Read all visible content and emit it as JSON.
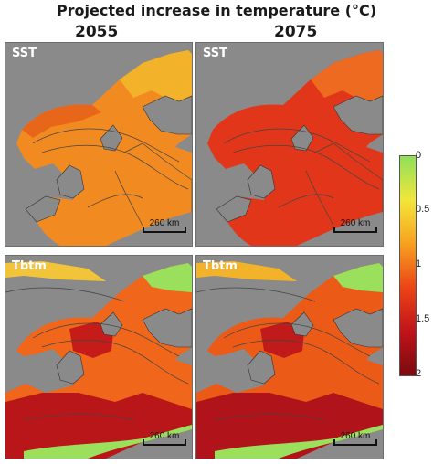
{
  "title": "Projected increase in temperature (°C)",
  "columns": [
    "2055",
    "2075"
  ],
  "panels": [
    {
      "row_label": "SST",
      "year": "2055",
      "scale": "260 km"
    },
    {
      "row_label": "SST",
      "year": "2075",
      "scale": "260 km"
    },
    {
      "row_label": "Tbtm",
      "year": "2055",
      "scale": "260 km"
    },
    {
      "row_label": "Tbtm",
      "year": "2075",
      "scale": "260 km"
    }
  ],
  "colorbar": {
    "ticks": [
      "0",
      "0.5",
      "1",
      "1.5",
      "2"
    ],
    "colors": [
      "#8ee05a",
      "#f2e63a",
      "#f7a11f",
      "#ec4416",
      "#c0141a",
      "#7a0a10"
    ]
  },
  "colors": {
    "land": "#8a8a8a",
    "sst_2055": "#f28a22",
    "sst_2075": "#e2361a",
    "tbtm_ocean": "#f0661a",
    "tbtm_deep": "#b9161a",
    "tbtm_coast": "#9be05c"
  }
}
